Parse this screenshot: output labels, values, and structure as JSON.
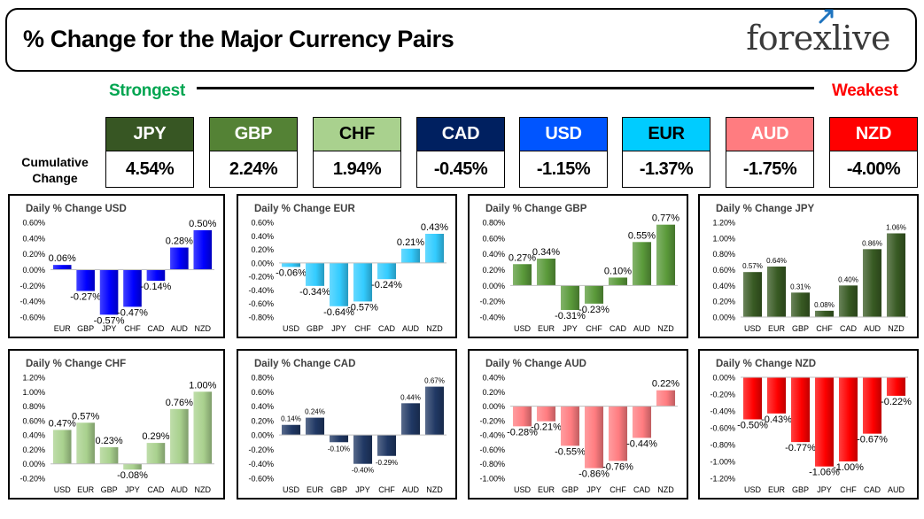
{
  "header": {
    "title": "% Change for the Major Currency Pairs",
    "logo_left": "fore",
    "logo_mark": "x",
    "logo_right": "live"
  },
  "strength": {
    "strongest_label": "Strongest",
    "weakest_label": "Weakest",
    "cumulative_label": "Cumulative Change",
    "items": [
      {
        "currency": "JPY",
        "value": "4.54%",
        "bg": "#375623",
        "text_color": "#ffffff"
      },
      {
        "currency": "GBP",
        "value": "2.24%",
        "bg": "#548235",
        "text_color": "#ffffff"
      },
      {
        "currency": "CHF",
        "value": "1.94%",
        "bg": "#a9d18e",
        "text_color": "#000000"
      },
      {
        "currency": "CAD",
        "value": "-0.45%",
        "bg": "#002060",
        "text_color": "#ffffff"
      },
      {
        "currency": "USD",
        "value": "-1.15%",
        "bg": "#0055ff",
        "text_color": "#ffffff"
      },
      {
        "currency": "EUR",
        "value": "-1.37%",
        "bg": "#00ccff",
        "text_color": "#000000"
      },
      {
        "currency": "AUD",
        "value": "-1.75%",
        "bg": "#ff7c80",
        "text_color": "#ffffff"
      },
      {
        "currency": "NZD",
        "value": "-4.00%",
        "bg": "#ff0000",
        "text_color": "#ffffff"
      }
    ]
  },
  "chart_data": [
    {
      "type": "bar",
      "title": "Daily % Change USD",
      "categories": [
        "EUR",
        "GBP",
        "JPY",
        "CHF",
        "CAD",
        "AUD",
        "NZD"
      ],
      "values": [
        0.06,
        -0.27,
        -0.57,
        -0.47,
        -0.14,
        0.28,
        0.5
      ],
      "ylim": [
        -0.6,
        0.6
      ],
      "yticks": [
        -0.6,
        -0.4,
        -0.2,
        0,
        0.2,
        0.4,
        0.6
      ],
      "bar_color": "#0000ff",
      "label_size": 11
    },
    {
      "type": "bar",
      "title": "Daily % Change EUR",
      "categories": [
        "USD",
        "GBP",
        "JPY",
        "CHF",
        "CAD",
        "AUD",
        "NZD"
      ],
      "values": [
        -0.06,
        -0.34,
        -0.64,
        -0.57,
        -0.24,
        0.21,
        0.43
      ],
      "ylim": [
        -0.8,
        0.6
      ],
      "yticks": [
        -0.8,
        -0.6,
        -0.4,
        -0.2,
        0,
        0.2,
        0.4,
        0.6
      ],
      "bar_color": "#33ccff",
      "label_size": 11
    },
    {
      "type": "bar",
      "title": "Daily % Change GBP",
      "categories": [
        "USD",
        "EUR",
        "JPY",
        "CHF",
        "CAD",
        "AUD",
        "NZD"
      ],
      "values": [
        0.27,
        0.34,
        -0.31,
        -0.23,
        0.1,
        0.55,
        0.77
      ],
      "ylim": [
        -0.4,
        0.8
      ],
      "yticks": [
        -0.4,
        -0.2,
        0,
        0.2,
        0.4,
        0.6,
        0.8
      ],
      "bar_color": "#5a9a3a",
      "label_size": 11
    },
    {
      "type": "bar",
      "title": "Daily % Change JPY",
      "categories": [
        "USD",
        "EUR",
        "GBP",
        "CHF",
        "CAD",
        "AUD",
        "NZD"
      ],
      "values": [
        0.57,
        0.64,
        0.31,
        0.08,
        0.4,
        0.86,
        1.06
      ],
      "ylim": [
        0,
        1.2
      ],
      "yticks": [
        0,
        0.2,
        0.4,
        0.6,
        0.8,
        1,
        1.2
      ],
      "bar_color": "#385a23",
      "label_size": 8
    },
    {
      "type": "bar",
      "title": "Daily % Change CHF",
      "categories": [
        "USD",
        "EUR",
        "GBP",
        "JPY",
        "CAD",
        "AUD",
        "NZD"
      ],
      "values": [
        0.47,
        0.57,
        0.23,
        -0.08,
        0.29,
        0.76,
        1.0
      ],
      "ylim": [
        -0.2,
        1.2
      ],
      "yticks": [
        -0.2,
        0,
        0.2,
        0.4,
        0.6,
        0.8,
        1,
        1.2
      ],
      "bar_color": "#a9d18e",
      "label_size": 11
    },
    {
      "type": "bar",
      "title": "Daily % Change CAD",
      "categories": [
        "USD",
        "EUR",
        "GBP",
        "JPY",
        "CHF",
        "AUD",
        "NZD"
      ],
      "values": [
        0.14,
        0.24,
        -0.1,
        -0.4,
        -0.29,
        0.44,
        0.67
      ],
      "ylim": [
        -0.6,
        0.8
      ],
      "yticks": [
        -0.6,
        -0.4,
        -0.2,
        0,
        0.2,
        0.4,
        0.6,
        0.8
      ],
      "bar_color": "#203864",
      "label_size": 8
    },
    {
      "type": "bar",
      "title": "Daily % Change AUD",
      "categories": [
        "USD",
        "EUR",
        "GBP",
        "JPY",
        "CHF",
        "CAD",
        "NZD"
      ],
      "values": [
        -0.28,
        -0.21,
        -0.55,
        -0.86,
        -0.76,
        -0.44,
        0.22
      ],
      "ylim": [
        -1,
        0.4
      ],
      "yticks": [
        -1,
        -0.8,
        -0.6,
        -0.4,
        -0.2,
        0,
        0.2,
        0.4
      ],
      "bar_color": "#ff7c80",
      "label_size": 11
    },
    {
      "type": "bar",
      "title": "Daily % Change NZD",
      "categories": [
        "USD",
        "EUR",
        "GBP",
        "JPY",
        "CHF",
        "CAD",
        "AUD"
      ],
      "values": [
        -0.5,
        -0.43,
        -0.77,
        -1.06,
        -1.0,
        -0.67,
        -0.22
      ],
      "ylim": [
        -1.2,
        0
      ],
      "yticks": [
        -1.2,
        -1,
        -0.8,
        -0.6,
        -0.4,
        -0.2,
        0
      ],
      "bar_color": "#ff0000",
      "label_size": 11
    }
  ]
}
